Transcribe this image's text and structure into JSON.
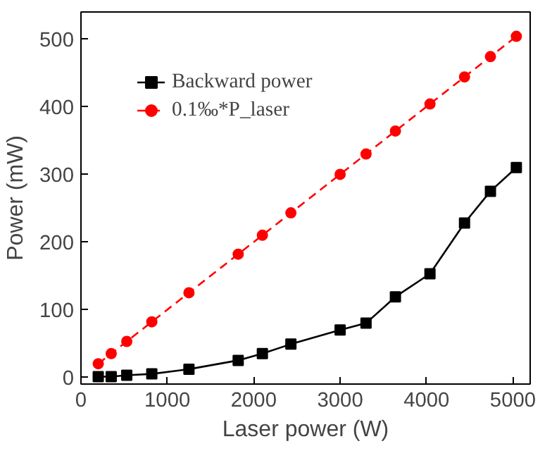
{
  "chart_data": {
    "type": "line",
    "xlabel": "Laser power (W)",
    "ylabel": "Power (mW)",
    "xlim": [
      0,
      5200
    ],
    "ylim": [
      -10,
      540
    ],
    "xticks": [
      0,
      1000,
      2000,
      3000,
      4000,
      5000
    ],
    "yticks": [
      0,
      100,
      200,
      300,
      400,
      500
    ],
    "legend": "top left",
    "grid": false,
    "series": [
      {
        "name": "Backward power",
        "color": "#000000",
        "marker": "square",
        "line_style": "solid",
        "x": [
          200,
          350,
          530,
          820,
          1250,
          1820,
          2100,
          2430,
          3000,
          3300,
          3640,
          4040,
          4440,
          4740,
          5040
        ],
        "values": [
          1,
          1,
          3,
          5,
          12,
          25,
          35,
          49,
          70,
          80,
          119,
          153,
          228,
          275,
          310
        ]
      },
      {
        "name": "0.1‰*P_laser",
        "color": "#ff0000",
        "marker": "circle",
        "line_style": "dashed",
        "x": [
          200,
          350,
          530,
          820,
          1250,
          1820,
          2100,
          2430,
          3000,
          3300,
          3640,
          4040,
          4440,
          4740,
          5040
        ],
        "values": [
          20,
          35,
          53,
          82,
          125,
          182,
          210,
          243,
          300,
          330,
          364,
          404,
          444,
          474,
          504
        ]
      }
    ]
  }
}
